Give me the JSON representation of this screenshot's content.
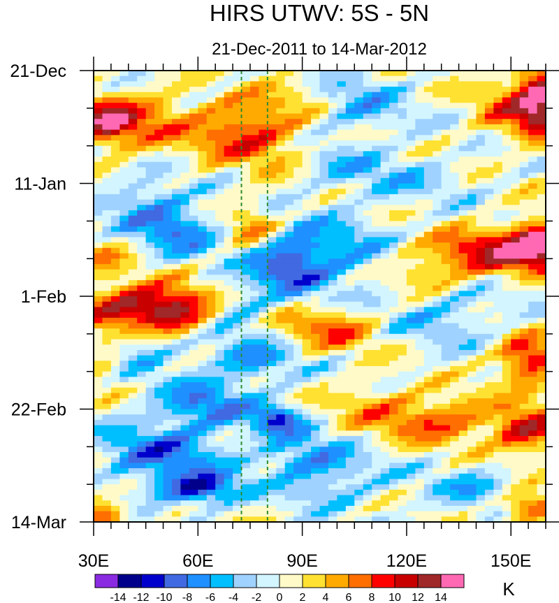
{
  "chart_data": {
    "type": "heatmap",
    "title": "HIRS UTWV: 5S - 5N",
    "subtitle": "21-Dec-2011 to 14-Mar-2012",
    "xlabel": "",
    "ylabel": "",
    "x_range": [
      30,
      160
    ],
    "y_range_days": [
      0,
      84
    ],
    "x_ticks": [
      30,
      60,
      90,
      120,
      150
    ],
    "x_tick_labels": [
      "30E",
      "60E",
      "90E",
      "120E",
      "150E"
    ],
    "y_tick_days": [
      0,
      21,
      42,
      63,
      84
    ],
    "y_tick_labels": [
      "21-Dec",
      "11-Jan",
      "1-Feb",
      "22-Feb",
      "14-Mar"
    ],
    "reference_lines_lon": [
      72.5,
      80
    ],
    "reference_line_color": "#2e8b2e",
    "colorbar": {
      "unit": "K",
      "levels": [
        -14,
        -12,
        -10,
        -8,
        -6,
        -4,
        -2,
        0,
        2,
        4,
        6,
        8,
        10,
        12,
        14
      ],
      "level_labels": [
        "-14",
        "-12",
        "-10",
        "-8",
        "-6",
        "-4",
        "-2",
        "0",
        "2",
        "4",
        "6",
        "8",
        "10",
        "12",
        "14"
      ],
      "colors": [
        "#8a2be2",
        "#00008b",
        "#0000cd",
        "#4169e1",
        "#1e90ff",
        "#00bfff",
        "#a0d2ff",
        "#d2f5ff",
        "#fffac8",
        "#ffe132",
        "#ffaa00",
        "#ff6e00",
        "#ff0000",
        "#c80000",
        "#a02828",
        "#ff69b4"
      ]
    },
    "anomaly_features": [
      {
        "lon": 33,
        "day": 10,
        "amp": 11,
        "slon": 6,
        "sday": 3
      },
      {
        "lon": 45,
        "day": 9,
        "amp": 6,
        "slon": 10,
        "sday": 4
      },
      {
        "lon": 70,
        "day": 11,
        "amp": 7,
        "slon": 9,
        "sday": 4
      },
      {
        "lon": 82,
        "day": 13,
        "amp": 5,
        "slon": 8,
        "sday": 4
      },
      {
        "lon": 105,
        "day": 6,
        "amp": -5,
        "slon": 10,
        "sday": 4
      },
      {
        "lon": 158,
        "day": 5,
        "amp": 13,
        "slon": 4,
        "sday": 5
      },
      {
        "lon": 150,
        "day": 7,
        "amp": 7,
        "slon": 7,
        "sday": 4
      },
      {
        "lon": 90,
        "day": 4,
        "amp": 3,
        "slon": 10,
        "sday": 3
      },
      {
        "lon": 45,
        "day": 25,
        "amp": -6,
        "slon": 8,
        "sday": 3
      },
      {
        "lon": 100,
        "day": 18,
        "amp": -3,
        "slon": 10,
        "sday": 3
      },
      {
        "lon": 120,
        "day": 20,
        "amp": -3,
        "slon": 12,
        "sday": 3
      },
      {
        "lon": 55,
        "day": 30,
        "amp": -7,
        "slon": 8,
        "sday": 3
      },
      {
        "lon": 76,
        "day": 29,
        "amp": 6,
        "slon": 5,
        "sday": 3
      },
      {
        "lon": 85,
        "day": 36,
        "amp": -9,
        "slon": 8,
        "sday": 4
      },
      {
        "lon": 100,
        "day": 34,
        "amp": -5,
        "slon": 10,
        "sday": 5
      },
      {
        "lon": 145,
        "day": 34,
        "amp": 11,
        "slon": 12,
        "sday": 3
      },
      {
        "lon": 157,
        "day": 32,
        "amp": 13,
        "slon": 5,
        "sday": 3
      },
      {
        "lon": 125,
        "day": 38,
        "amp": 4,
        "slon": 8,
        "sday": 3
      },
      {
        "lon": 33,
        "day": 35,
        "amp": 4,
        "slon": 5,
        "sday": 3
      },
      {
        "lon": 42,
        "day": 44,
        "amp": 12,
        "slon": 11,
        "sday": 3
      },
      {
        "lon": 55,
        "day": 45,
        "amp": 8,
        "slon": 7,
        "sday": 3
      },
      {
        "lon": 72,
        "day": 45,
        "amp": -4,
        "slon": 6,
        "sday": 3
      },
      {
        "lon": 98,
        "day": 48,
        "amp": 7,
        "slon": 10,
        "sday": 3
      },
      {
        "lon": 130,
        "day": 45,
        "amp": -4,
        "slon": 12,
        "sday": 4
      },
      {
        "lon": 45,
        "day": 52,
        "amp": -4,
        "slon": 10,
        "sday": 3
      },
      {
        "lon": 75,
        "day": 54,
        "amp": -6,
        "slon": 9,
        "sday": 3
      },
      {
        "lon": 155,
        "day": 54,
        "amp": 11,
        "slon": 6,
        "sday": 3
      },
      {
        "lon": 33,
        "day": 54,
        "amp": 4,
        "slon": 4,
        "sday": 4
      },
      {
        "lon": 62,
        "day": 62,
        "amp": -7,
        "slon": 10,
        "sday": 3
      },
      {
        "lon": 83,
        "day": 65,
        "amp": -9,
        "slon": 5,
        "sday": 2
      },
      {
        "lon": 130,
        "day": 65,
        "amp": 8,
        "slon": 12,
        "sday": 3
      },
      {
        "lon": 155,
        "day": 67,
        "amp": 11,
        "slon": 6,
        "sday": 3
      },
      {
        "lon": 110,
        "day": 62,
        "amp": 4,
        "slon": 8,
        "sday": 3
      },
      {
        "lon": 50,
        "day": 71,
        "amp": -8,
        "slon": 12,
        "sday": 4
      },
      {
        "lon": 90,
        "day": 72,
        "amp": -6,
        "slon": 10,
        "sday": 3
      },
      {
        "lon": 60,
        "day": 78,
        "amp": -11,
        "slon": 8,
        "sday": 2
      },
      {
        "lon": 100,
        "day": 77,
        "amp": -4,
        "slon": 10,
        "sday": 3
      },
      {
        "lon": 140,
        "day": 78,
        "amp": -4,
        "slon": 10,
        "sday": 3
      },
      {
        "lon": 155,
        "day": 81,
        "amp": 10,
        "slon": 6,
        "sday": 2
      },
      {
        "lon": 33,
        "day": 83,
        "amp": 9,
        "slon": 5,
        "sday": 2
      }
    ]
  }
}
